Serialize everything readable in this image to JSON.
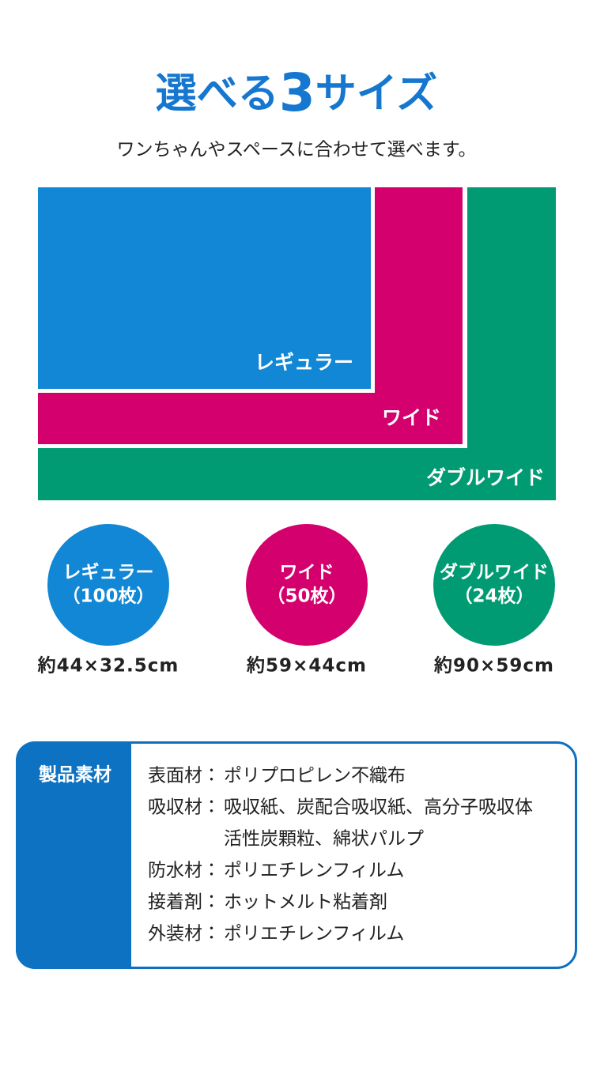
{
  "header": {
    "title": [
      "選べる",
      "3",
      "サイズ"
    ],
    "subtitle": "ワンちゃんやスペースに合わせて選べます。"
  },
  "sizes": [
    {
      "name": "レギュラー",
      "count": "（100枚）",
      "dimension": "約44×32.5cm"
    },
    {
      "name": "ワイド",
      "count": "（50枚）",
      "dimension": "約59×44cm"
    },
    {
      "name": "ダブルワイド",
      "count": "（24枚）",
      "dimension": "約90×59cm"
    }
  ],
  "materials": {
    "label": "製品素材",
    "rows": [
      {
        "term": "表面材：",
        "lines": [
          "ポリプロピレン不織布"
        ]
      },
      {
        "term": "吸収材：",
        "lines": [
          "吸収紙、炭配合吸収紙、高分子吸収体",
          "活性炭顆粒、綿状パルプ"
        ]
      },
      {
        "term": "防水材：",
        "lines": [
          "ポリエチレンフィルム"
        ]
      },
      {
        "term": "接着剤：",
        "lines": [
          "ホットメルト粘着剤"
        ]
      },
      {
        "term": "外装材：",
        "lines": [
          "ポリエチレンフィルム"
        ]
      }
    ]
  }
}
